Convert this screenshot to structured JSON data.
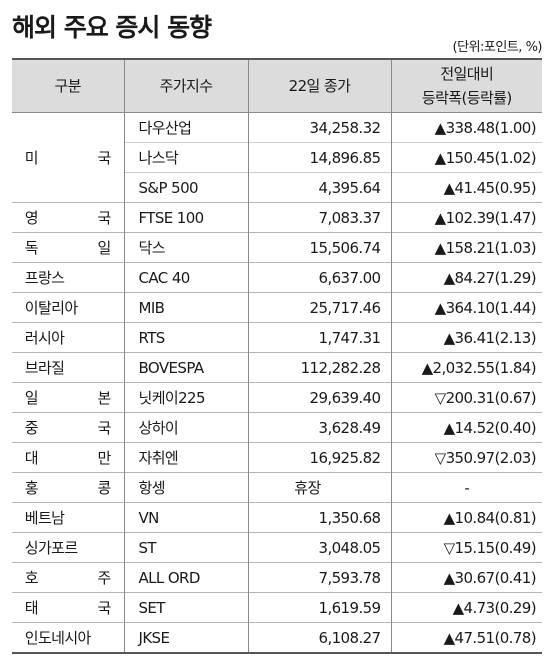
{
  "title": "해외 주요 증시 동향",
  "unit": "(단위:포인트, %)",
  "headers": {
    "category": "구분",
    "index": "주가지수",
    "close": "22일 종가",
    "change_line1": "전일대비",
    "change_line2": "등락폭(등락률)"
  },
  "rows": [
    {
      "country": "미 국",
      "index": "다우산업",
      "close": "34,258.32",
      "change": "▲338.48(1.00)"
    },
    {
      "country": "",
      "index": "나스닥",
      "close": "14,896.85",
      "change": "▲150.45(1.02)"
    },
    {
      "country": "",
      "index": "S&P 500",
      "close": "4,395.64",
      "change": "▲41.45(0.95)"
    },
    {
      "country": "영 국",
      "index": "FTSE 100",
      "close": "7,083.37",
      "change": "▲102.39(1.47)"
    },
    {
      "country": "독 일",
      "index": "닥스",
      "close": "15,506.74",
      "change": "▲158.21(1.03)"
    },
    {
      "country": "프랑스",
      "index": "CAC 40",
      "close": "6,637.00",
      "change": "▲84.27(1.29)"
    },
    {
      "country": "이탈리아",
      "index": "MIB",
      "close": "25,717.46",
      "change": "▲364.10(1.44)"
    },
    {
      "country": "러시아",
      "index": "RTS",
      "close": "1,747.31",
      "change": "▲36.41(2.13)"
    },
    {
      "country": "브라질",
      "index": "BOVESPA",
      "close": "112,282.28",
      "change": "▲2,032.55(1.84)"
    },
    {
      "country": "일 본",
      "index": "닛케이225",
      "close": "29,639.40",
      "change": "▽200.31(0.67)"
    },
    {
      "country": "중 국",
      "index": "상하이",
      "close": "3,628.49",
      "change": "▲14.52(0.40)"
    },
    {
      "country": "대 만",
      "index": "자취엔",
      "close": "16,925.82",
      "change": "▽350.97(2.03)"
    },
    {
      "country": "홍 콩",
      "index": "항셍",
      "close": "휴장",
      "change": "-"
    },
    {
      "country": "베트남",
      "index": "VN",
      "close": "1,350.68",
      "change": "▲10.84(0.81)"
    },
    {
      "country": "싱가포르",
      "index": "ST",
      "close": "3,048.05",
      "change": "▽15.15(0.49)"
    },
    {
      "country": "호 주",
      "index": "ALL ORD",
      "close": "7,593.78",
      "change": "▲30.67(0.41)"
    },
    {
      "country": "태 국",
      "index": "SET",
      "close": "1,619.59",
      "change": "▲4.73(0.29)"
    },
    {
      "country": "인도네시아",
      "index": "JKSE",
      "close": "6,108.27",
      "change": "▲47.51(0.78)"
    }
  ]
}
